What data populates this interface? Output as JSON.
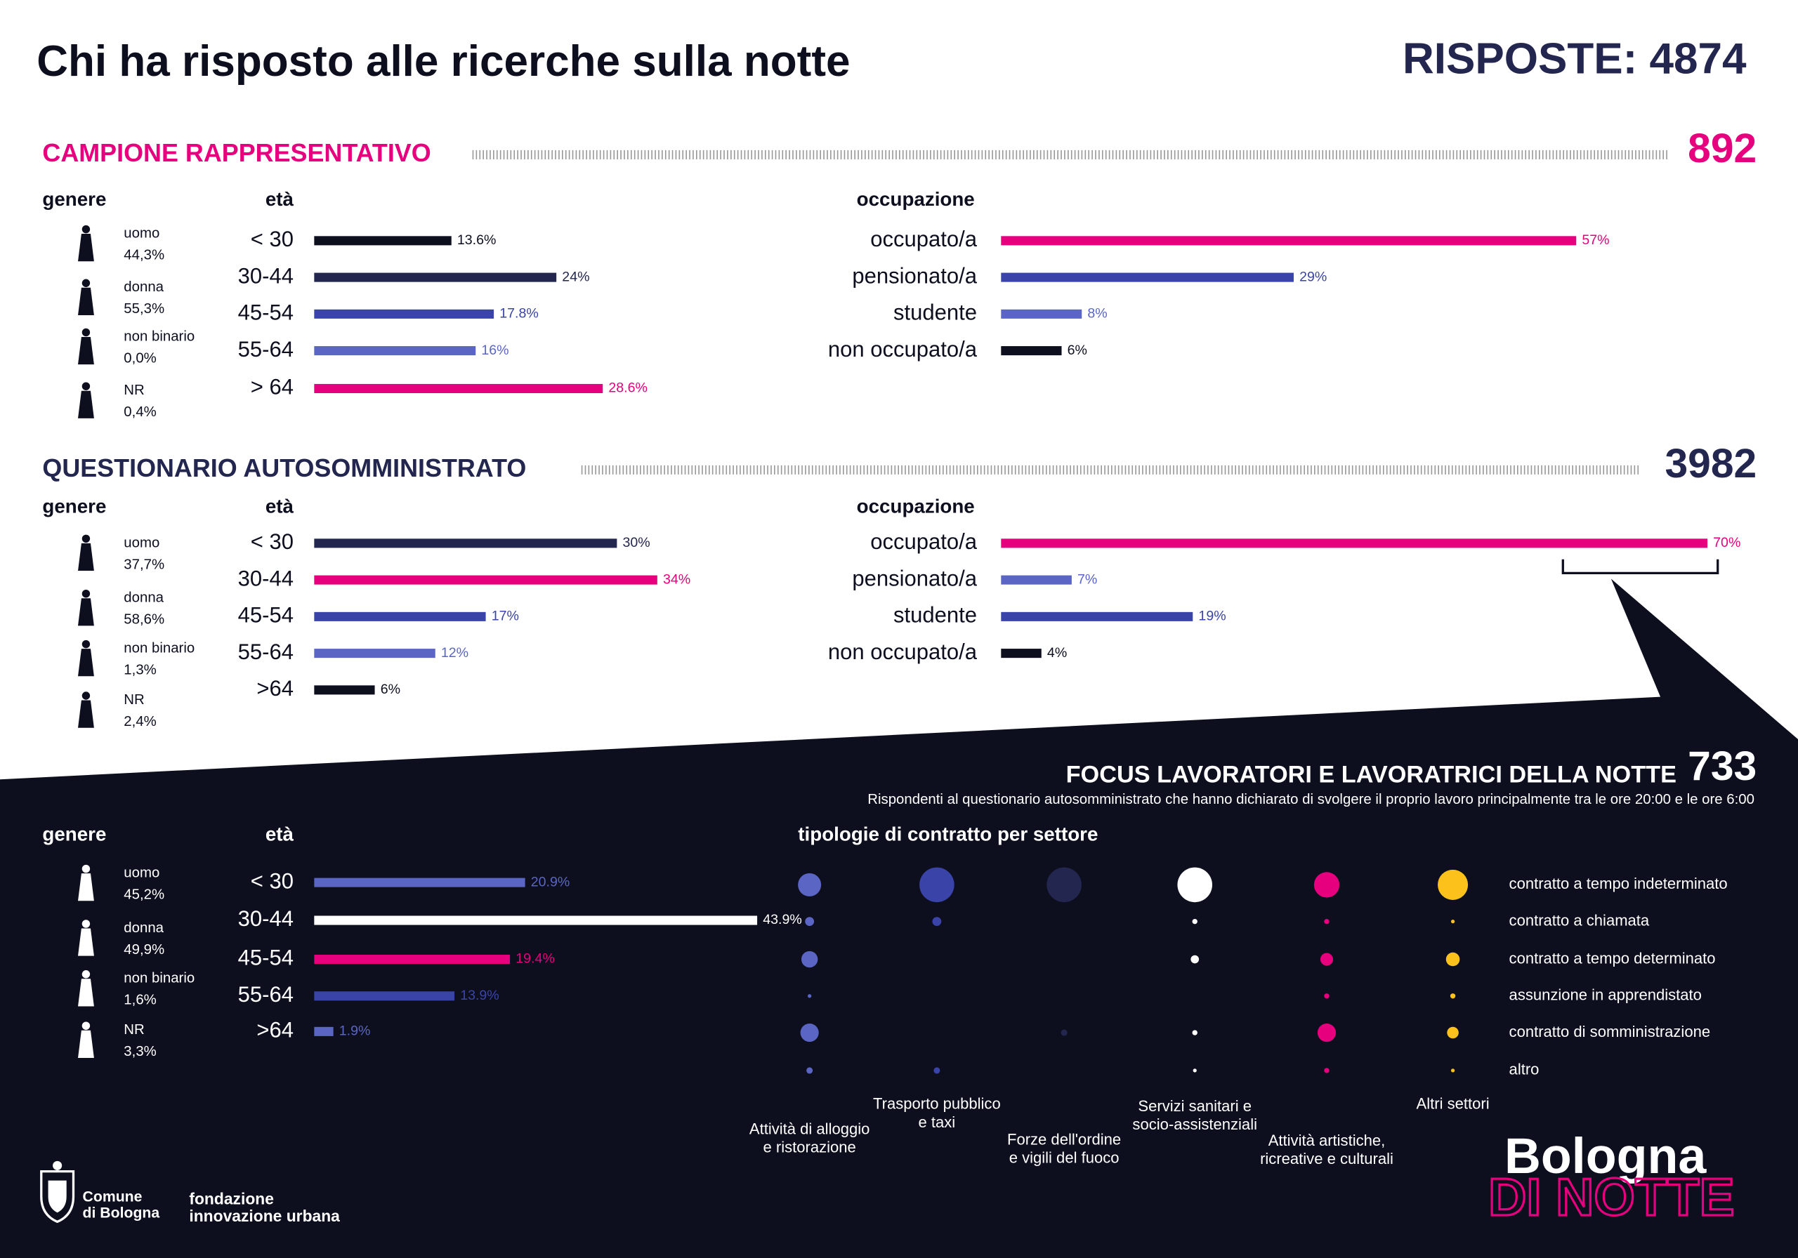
{
  "header": {
    "title": "Chi ha risposto alle ricerche sulla notte",
    "total": "RISPOSTE: 4874"
  },
  "sections": [
    {
      "title": "CAMPIONE RAPPRESENTATIVO",
      "count": "892",
      "gender_heading": "genere",
      "age_heading": "età",
      "occupation_heading": "occupazione",
      "gender": [
        {
          "label": "uomo",
          "share": "44,3%"
        },
        {
          "label": "donna",
          "share": "55,3%"
        },
        {
          "label": "non binario",
          "share": "0,0%"
        },
        {
          "label": "NR",
          "share": "0,4%"
        }
      ],
      "age": {
        "categories": [
          "< 30",
          "30-44",
          "45-54",
          "55-64",
          "> 64"
        ],
        "values": [
          13.6,
          24,
          17.8,
          16,
          28.6
        ],
        "value_labels": [
          "13.6%",
          "24%",
          "17.8%",
          "16%",
          "28.6%"
        ],
        "colors": [
          "#0d0f1f",
          "#23264f",
          "#3a44a8",
          "#5a65c4",
          "#e6007e"
        ]
      },
      "occupation": {
        "categories": [
          "occupato/a",
          "pensionato/a",
          "studente",
          "non occupato/a"
        ],
        "values": [
          57,
          29,
          8,
          6
        ],
        "value_labels": [
          "57%",
          "29%",
          "8%",
          "6%"
        ],
        "colors": [
          "#e6007e",
          "#3a44a8",
          "#5a65c4",
          "#0d0f1f"
        ]
      }
    },
    {
      "title": "QUESTIONARIO AUTOSOMMINISTRATO",
      "count": "3982",
      "gender_heading": "genere",
      "age_heading": "età",
      "occupation_heading": "occupazione",
      "gender": [
        {
          "label": "uomo",
          "share": "37,7%"
        },
        {
          "label": "donna",
          "share": "58,6%"
        },
        {
          "label": "non binario",
          "share": "1,3%"
        },
        {
          "label": "NR",
          "share": "2,4%"
        }
      ],
      "age": {
        "categories": [
          "< 30",
          "30-44",
          "45-54",
          "55-64",
          ">64"
        ],
        "values": [
          30,
          34,
          17,
          12,
          6
        ],
        "value_labels": [
          "30%",
          "34%",
          "17%",
          "12%",
          "6%"
        ],
        "colors": [
          "#23264f",
          "#e6007e",
          "#3a44a8",
          "#5a65c4",
          "#0d0f1f"
        ]
      },
      "occupation": {
        "categories": [
          "occupato/a",
          "pensionato/a",
          "studente",
          "non occupato/a"
        ],
        "values": [
          70,
          7,
          19,
          4
        ],
        "value_labels": [
          "70%",
          "7%",
          "19%",
          "4%"
        ],
        "colors": [
          "#e6007e",
          "#5a65c4",
          "#3a44a8",
          "#0d0f1f"
        ]
      }
    }
  ],
  "focus": {
    "title": "FOCUS LAVORATORI E LAVORATRICI DELLA NOTTE",
    "count": "733",
    "subtitle": "Rispondenti al questionario autosomministrato che hanno dichiarato di svolgere il proprio lavoro principalmente tra le ore 20:00 e le ore 6:00",
    "gender_heading": "genere",
    "age_heading": "età",
    "contracts_heading": "tipologie di contratto per settore",
    "gender": [
      {
        "label": "uomo",
        "share": "45,2%"
      },
      {
        "label": "donna",
        "share": "49,9%"
      },
      {
        "label": "non binario",
        "share": "1,6%"
      },
      {
        "label": "NR",
        "share": "3,3%"
      }
    ],
    "age": {
      "categories": [
        "< 30",
        "30-44",
        "45-54",
        "55-64",
        ">64"
      ],
      "values": [
        20.9,
        43.9,
        19.4,
        13.9,
        1.9
      ],
      "value_labels": [
        "20.9%",
        "43.9%",
        "19.4%",
        "13.9%",
        "1.9%"
      ],
      "colors": [
        "#5a65c4",
        "#ffffff",
        "#e6007e",
        "#3a44a8",
        "#5a65c4"
      ]
    },
    "contracts": [
      "contratto a tempo indeterminato",
      "contratto a chiamata",
      "contratto a tempo determinato",
      "assunzione in apprendistato",
      "contratto di somministrazione",
      "altro"
    ],
    "sectors": [
      {
        "name": [
          "Attività di alloggio",
          "e ristorazione"
        ],
        "color": "#5a65c4",
        "values": [
          40,
          6,
          20,
          1,
          25,
          3
        ]
      },
      {
        "name": [
          "Trasporto pubblico",
          "e taxi"
        ],
        "color": "#3a44a8",
        "values": [
          90,
          6,
          0,
          0,
          0,
          3
        ]
      },
      {
        "name": [
          "Forze dell'ordine",
          "e vigili del fuoco"
        ],
        "color": "#23264f",
        "values": [
          90,
          0,
          0,
          0,
          3,
          0
        ]
      },
      {
        "name": [
          "Servizi sanitari e",
          "socio-assistenziali"
        ],
        "color": "#ffffff",
        "values": [
          90,
          2,
          5,
          0,
          2,
          1
        ]
      },
      {
        "name": [
          "Attività artistiche,",
          "ricreative e culturali"
        ],
        "color": "#e6007e",
        "values": [
          48,
          2,
          12,
          2,
          25,
          2
        ]
      },
      {
        "name": [
          "Altri settori"
        ],
        "color": "#fcc21b",
        "values": [
          68,
          1,
          14,
          2,
          10,
          1
        ]
      }
    ]
  },
  "footer": {
    "comune": [
      "Comune",
      "di Bologna"
    ],
    "fondazione": [
      "fondazione",
      "innovazione urbana"
    ],
    "brand": "Bologna",
    "brand_sub": "DI NOTTE"
  }
}
